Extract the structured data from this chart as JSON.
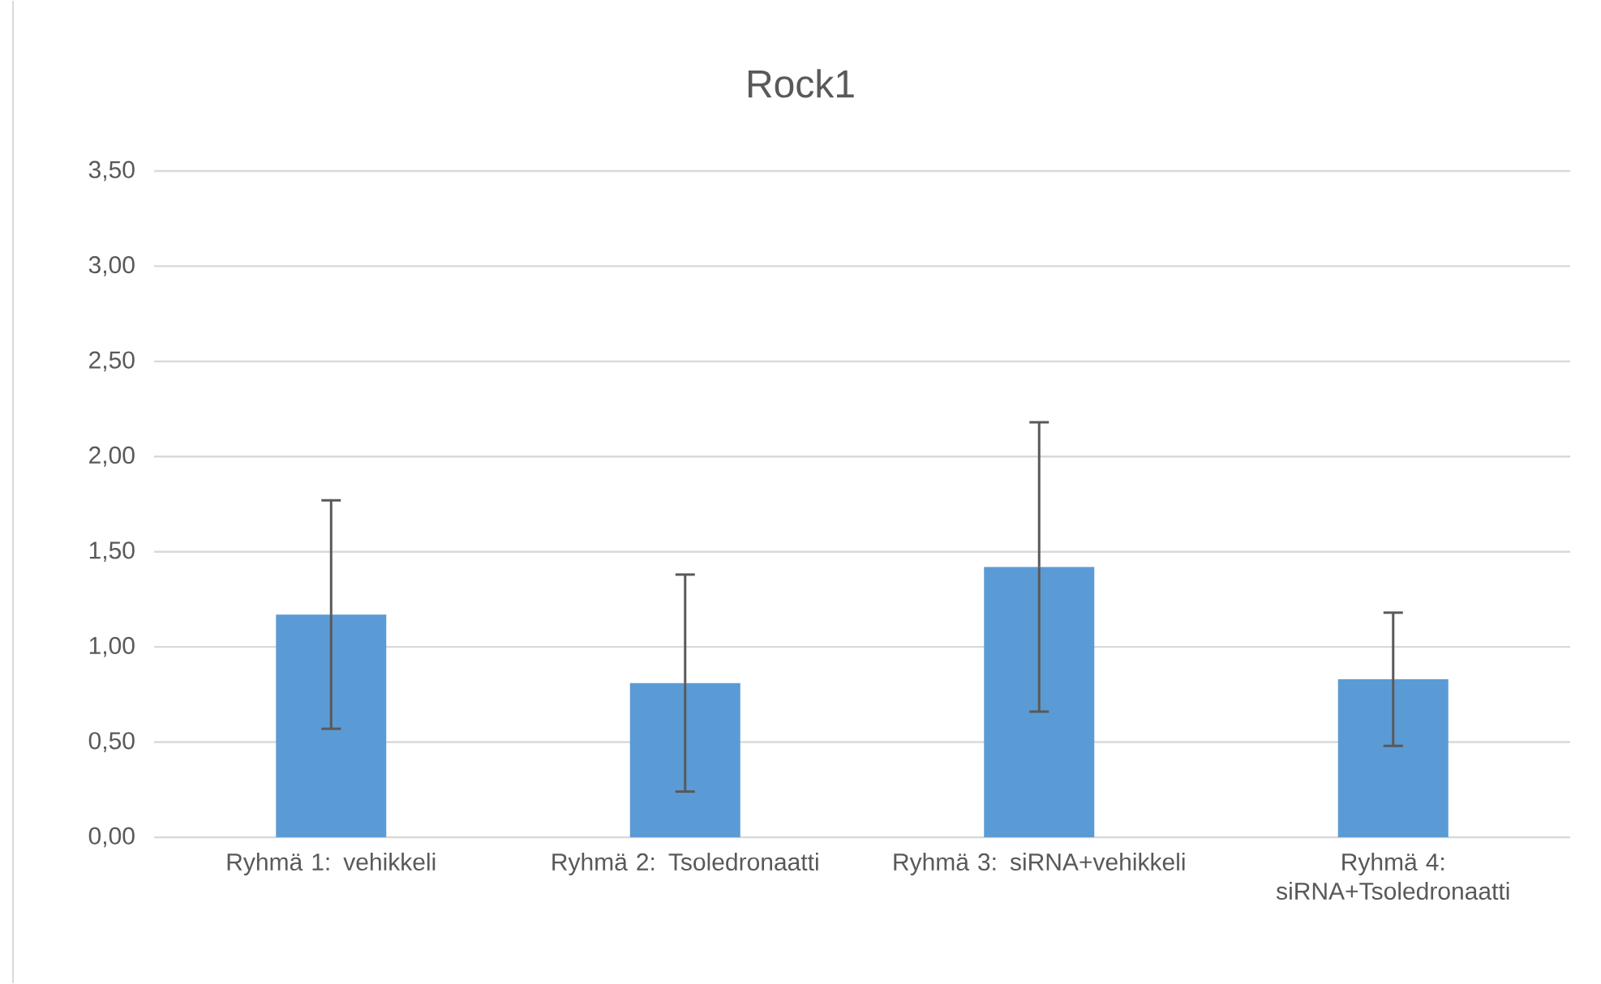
{
  "chart_data": {
    "type": "bar",
    "title": "Rock1",
    "categories": [
      "Ryhmä 1: vehikkeli",
      "Ryhmä 2: Tsoledronaatti",
      "Ryhmä 3: siRNA+vehikkeli",
      "Ryhmä 4: siRNA+Tsoledronaatti"
    ],
    "values": [
      1.17,
      0.81,
      1.42,
      0.83
    ],
    "errors": [
      0.6,
      0.57,
      0.76,
      0.35
    ],
    "color": "#5b9bd5",
    "ylim": [
      0,
      3.5
    ],
    "yticks": [
      {
        "value": 0,
        "label": "0,00"
      },
      {
        "value": 0.5,
        "label": "0,50"
      },
      {
        "value": 1,
        "label": "1,00"
      },
      {
        "value": 1.5,
        "label": "1,50"
      },
      {
        "value": 2,
        "label": "2,00"
      },
      {
        "value": 2.5,
        "label": "2,50"
      },
      {
        "value": 3,
        "label": "3,00"
      },
      {
        "value": 3.5,
        "label": "3,50"
      }
    ],
    "grid": "y"
  }
}
